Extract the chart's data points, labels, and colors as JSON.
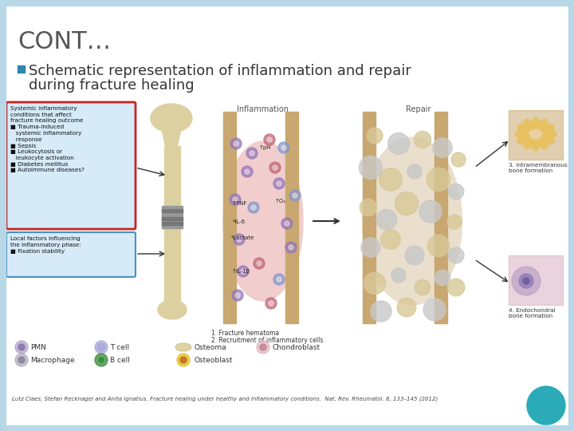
{
  "title": "CONT…",
  "bullet_text_line1": "Schematic representation of inflammation and repair",
  "bullet_text_line2": "during fracture healing",
  "citation": "Lutz Claes, Stefan Recknagel and Anita Ignatius. Fracture healing under healthy and inflammatory conditions.  Nat. Rev. Rheumatol. 8, 133–145 (2012)",
  "bg_color": "#ffffff",
  "border_color": "#b8d8e8",
  "title_color": "#555555",
  "bullet_color": "#333333",
  "bullet_marker_color": "#2e86ab",
  "citation_color": "#444444",
  "teal_circle_color": "#2baab8",
  "red_box_edge": "#cc2222",
  "blue_box_edge": "#4a90c4",
  "info_box_fill": "#d6eaf8",
  "bone_color": "#ddd0a0",
  "cortex_color": "#c8a870",
  "hematoma_color": "#f0c8c8",
  "repair_fill": "#e8dcc8",
  "intra_bg": "#c8a870",
  "intra_inner": "#e8c060",
  "endo_bg": "#d8b0c0",
  "endo_inner": "#9880b8"
}
